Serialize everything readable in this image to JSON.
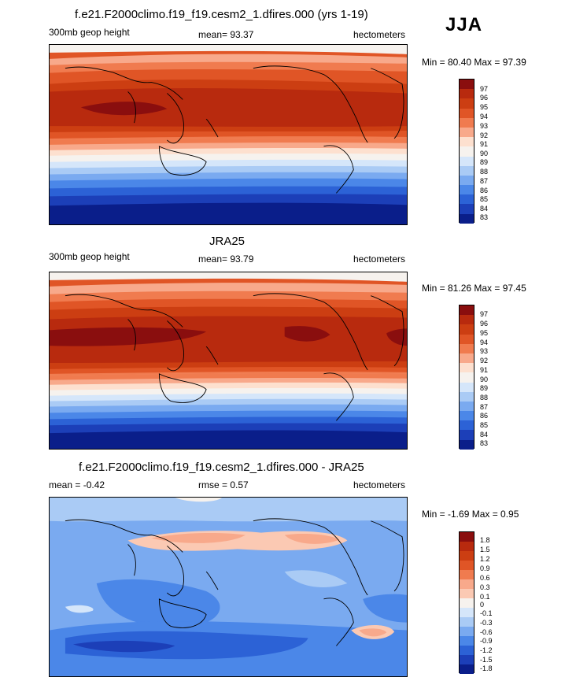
{
  "season": "JJA",
  "panels": [
    {
      "title": "f.e21.F2000climo.f19_f19.cesm2_1.dfires.000 (yrs 1-19)",
      "left_label": "300mb geop height",
      "center_label": "mean=  93.37",
      "right_label": "hectometers",
      "minmax": "Min =  80.40 Max =  97.39",
      "colorbar_labels": [
        "97",
        "96",
        "95",
        "94",
        "93",
        "92",
        "91",
        "90",
        "89",
        "88",
        "87",
        "86",
        "85",
        "84",
        "83"
      ]
    },
    {
      "title": "JRA25",
      "left_label": "300mb geop height",
      "center_label": "mean=  93.79",
      "right_label": "hectometers",
      "minmax": "Min =  81.26 Max =  97.45",
      "colorbar_labels": [
        "97",
        "96",
        "95",
        "94",
        "93",
        "92",
        "91",
        "90",
        "89",
        "88",
        "87",
        "86",
        "85",
        "84",
        "83"
      ]
    },
    {
      "title": "f.e21.F2000climo.f19_f19.cesm2_1.dfires.000 - JRA25",
      "left_label": "mean =  -0.42",
      "center_label": "rmse =   0.57",
      "right_label": "hectometers",
      "minmax": "Min =  -1.69 Max =   0.95",
      "colorbar_labels": [
        "1.8",
        "1.5",
        "1.2",
        "0.9",
        "0.6",
        "0.3",
        "0.1",
        "0",
        "-0.1",
        "-0.3",
        "-0.6",
        "-0.9",
        "-1.2",
        "-1.5",
        "-1.8"
      ]
    }
  ],
  "colors": {
    "abs_scale": [
      "#8a0e0e",
      "#b82a0e",
      "#cc3e12",
      "#e05526",
      "#f07b4f",
      "#f8a98b",
      "#fde0cf",
      "#f6f2ee",
      "#d5e6fa",
      "#aacbf5",
      "#7aaaf0",
      "#4b87e8",
      "#2c62d6",
      "#1c3fb8",
      "#0a1e8a"
    ],
    "diff_scale": [
      "#8a0e0e",
      "#b82a0e",
      "#cc3e12",
      "#e05526",
      "#f07b4f",
      "#f8a98b",
      "#fbc9b3",
      "#f6f2ee",
      "#d5e6fa",
      "#aacbf5",
      "#7aaaf0",
      "#4b87e8",
      "#2c62d6",
      "#1c3fb8",
      "#0a1e8a"
    ]
  }
}
